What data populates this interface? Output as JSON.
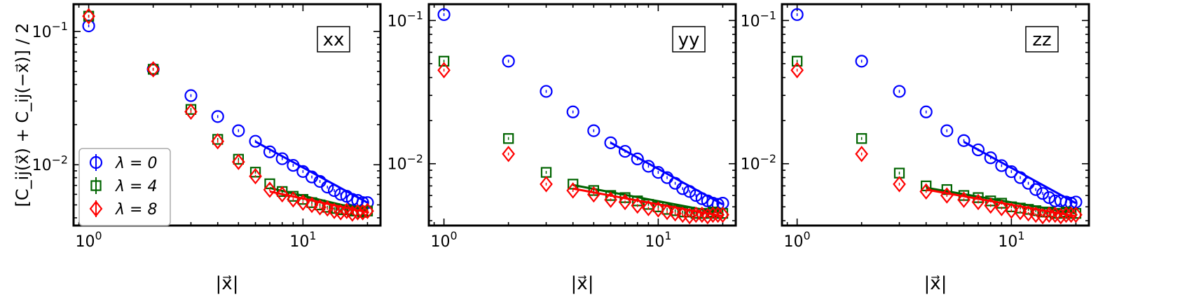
{
  "figure": {
    "ylabel": "[C_ij(x⃗) + C_ij(−x⃗)] / 2",
    "xlabel": "|x⃗|"
  },
  "legend": [
    {
      "label": "λ = 0",
      "color": "#0000ff",
      "marker": "circle-icon"
    },
    {
      "label": "λ = 4",
      "color": "#006400",
      "marker": "square-icon"
    },
    {
      "label": "λ = 8",
      "color": "#ff0000",
      "marker": "diamond-icon"
    }
  ],
  "chart_data": [
    {
      "type": "scatter",
      "panel_label": "xx",
      "xlabel": "|x⃗|",
      "ylabel": "[C_ij(x⃗) + C_ij(−x⃗)] / 2",
      "xscale": "log",
      "yscale": "log",
      "xlim": [
        0.85,
        23
      ],
      "ylim": [
        0.0035,
        0.16
      ],
      "x_ticks": [
        {
          "value": 1,
          "label": "10^0"
        },
        {
          "value": 10,
          "label": "10^1"
        }
      ],
      "y_ticks": [
        {
          "value": 0.01,
          "label": "10^-2"
        },
        {
          "value": 0.1,
          "label": "10^-1"
        }
      ],
      "grid": false,
      "legend_position": "lower-left",
      "series": [
        {
          "name": "λ = 0",
          "color": "#0000ff",
          "marker": "circle",
          "x": [
            1,
            2,
            3,
            4,
            5,
            6,
            7,
            8,
            9,
            10,
            11,
            12,
            13,
            14,
            15,
            16,
            17,
            18,
            19,
            20
          ],
          "y": [
            0.11,
            0.052,
            0.033,
            0.023,
            0.018,
            0.015,
            0.0125,
            0.0111,
            0.0099,
            0.0089,
            0.0081,
            0.0075,
            0.0068,
            0.0064,
            0.006,
            0.0058,
            0.0055,
            0.0054,
            0.0052,
            0.0052
          ],
          "fit_x": [
            6,
            20
          ],
          "fit_y": [
            0.0149,
            0.0052
          ]
        },
        {
          "name": "λ = 4",
          "color": "#006400",
          "marker": "square",
          "x": [
            1,
            2,
            3,
            4,
            5,
            6,
            7,
            8,
            9,
            10,
            11,
            12,
            13,
            14,
            15,
            16,
            17,
            18,
            19,
            20
          ],
          "y": [
            0.13,
            0.052,
            0.026,
            0.0155,
            0.011,
            0.0088,
            0.0072,
            0.0063,
            0.0058,
            0.0055,
            0.0052,
            0.005,
            0.0048,
            0.0047,
            0.0046,
            0.0046,
            0.0045,
            0.0045,
            0.0044,
            0.0045
          ],
          "fit_x": [
            7,
            20
          ],
          "fit_y": [
            0.0067,
            0.0045
          ]
        },
        {
          "name": "λ = 8",
          "color": "#ff0000",
          "marker": "diamond",
          "x": [
            1,
            2,
            3,
            4,
            5,
            6,
            7,
            8,
            9,
            10,
            11,
            12,
            13,
            14,
            15,
            16,
            17,
            18,
            19,
            20
          ],
          "y": [
            0.13,
            0.052,
            0.025,
            0.015,
            0.0105,
            0.0082,
            0.0065,
            0.006,
            0.0055,
            0.0052,
            0.005,
            0.0048,
            0.0047,
            0.0045,
            0.0044,
            0.0045,
            0.0043,
            0.0044,
            0.0044,
            0.0045
          ],
          "fit_x": [
            7,
            20
          ],
          "fit_y": [
            0.0063,
            0.0044
          ]
        }
      ]
    },
    {
      "type": "scatter",
      "panel_label": "yy",
      "xlabel": "|x⃗|",
      "xscale": "log",
      "yscale": "log",
      "xlim": [
        0.85,
        23
      ],
      "ylim": [
        0.0037,
        0.13
      ],
      "x_ticks": [
        {
          "value": 1,
          "label": "10^0"
        },
        {
          "value": 10,
          "label": "10^1"
        }
      ],
      "y_ticks": [
        {
          "value": 0.01,
          "label": "10^-2"
        },
        {
          "value": 0.1,
          "label": "10^-1"
        }
      ],
      "grid": false,
      "series": [
        {
          "name": "λ = 0",
          "color": "#0000ff",
          "marker": "circle",
          "x": [
            1,
            2,
            3,
            4,
            5,
            6,
            7,
            8,
            9,
            10,
            11,
            12,
            13,
            14,
            15,
            16,
            17,
            18,
            19,
            20
          ],
          "y": [
            0.11,
            0.052,
            0.032,
            0.023,
            0.017,
            0.014,
            0.0122,
            0.0108,
            0.0096,
            0.0087,
            0.008,
            0.0073,
            0.0067,
            0.0064,
            0.006,
            0.0057,
            0.0055,
            0.0053,
            0.0052,
            0.0053
          ],
          "fit_x": [
            6,
            20
          ],
          "fit_y": [
            0.014,
            0.0052
          ]
        },
        {
          "name": "λ = 4",
          "color": "#006400",
          "marker": "square",
          "x": [
            1,
            2,
            3,
            4,
            5,
            6,
            7,
            8,
            9,
            10,
            11,
            12,
            13,
            14,
            15,
            16,
            17,
            18,
            19,
            20
          ],
          "y": [
            0.052,
            0.015,
            0.0087,
            0.0072,
            0.0065,
            0.006,
            0.0058,
            0.0055,
            0.0052,
            0.005,
            0.0048,
            0.0047,
            0.0046,
            0.0046,
            0.0045,
            0.0045,
            0.0045,
            0.0046,
            0.0045,
            0.0045
          ],
          "fit_x": [
            4,
            20
          ],
          "fit_y": [
            0.0071,
            0.0045
          ]
        },
        {
          "name": "λ = 8",
          "color": "#ff0000",
          "marker": "diamond",
          "x": [
            1,
            2,
            3,
            4,
            5,
            6,
            7,
            8,
            9,
            10,
            11,
            12,
            13,
            14,
            15,
            16,
            17,
            18,
            19,
            20
          ],
          "y": [
            0.045,
            0.0117,
            0.0072,
            0.0065,
            0.0061,
            0.0056,
            0.0054,
            0.0051,
            0.0049,
            0.0048,
            0.0046,
            0.0045,
            0.0044,
            0.0043,
            0.0044,
            0.0044,
            0.0043,
            0.0044,
            0.0044,
            0.0044
          ],
          "fit_x": [
            4,
            20
          ],
          "fit_y": [
            0.0067,
            0.0043
          ]
        }
      ]
    },
    {
      "type": "scatter",
      "panel_label": "zz",
      "xlabel": "|x⃗|",
      "xscale": "log",
      "yscale": "log",
      "xlim": [
        0.85,
        23
      ],
      "ylim": [
        0.0037,
        0.13
      ],
      "x_ticks": [
        {
          "value": 1,
          "label": "10^0"
        },
        {
          "value": 10,
          "label": "10^1"
        }
      ],
      "y_ticks": [
        {
          "value": 0.01,
          "label": "10^-2"
        },
        {
          "value": 0.1,
          "label": "10^-1"
        }
      ],
      "grid": false,
      "series": [
        {
          "name": "λ = 0",
          "color": "#0000ff",
          "marker": "circle",
          "x": [
            1,
            2,
            3,
            4,
            5,
            6,
            7,
            8,
            9,
            10,
            11,
            12,
            13,
            14,
            15,
            16,
            17,
            18,
            19,
            20
          ],
          "y": [
            0.11,
            0.052,
            0.032,
            0.023,
            0.017,
            0.0145,
            0.0125,
            0.011,
            0.0097,
            0.0088,
            0.008,
            0.0073,
            0.0066,
            0.0062,
            0.0058,
            0.0055,
            0.0055,
            0.0054,
            0.0053,
            0.0054
          ],
          "fit_x": [
            6,
            20
          ],
          "fit_y": [
            0.0142,
            0.0053
          ]
        },
        {
          "name": "λ = 4",
          "color": "#006400",
          "marker": "square",
          "x": [
            1,
            2,
            3,
            4,
            5,
            6,
            7,
            8,
            9,
            10,
            11,
            12,
            13,
            14,
            15,
            16,
            17,
            18,
            19,
            20
          ],
          "y": [
            0.052,
            0.015,
            0.0086,
            0.007,
            0.0066,
            0.006,
            0.0058,
            0.0055,
            0.0053,
            0.005,
            0.0049,
            0.0048,
            0.0047,
            0.0046,
            0.0046,
            0.0045,
            0.0045,
            0.0046,
            0.0045,
            0.0045
          ],
          "fit_x": [
            4,
            20
          ],
          "fit_y": [
            0.0068,
            0.0045
          ]
        },
        {
          "name": "λ = 8",
          "color": "#ff0000",
          "marker": "diamond",
          "x": [
            1,
            2,
            3,
            4,
            5,
            6,
            7,
            8,
            9,
            10,
            11,
            12,
            13,
            14,
            15,
            16,
            17,
            18,
            19,
            20
          ],
          "y": [
            0.045,
            0.0117,
            0.0072,
            0.0064,
            0.006,
            0.0056,
            0.0054,
            0.0051,
            0.0049,
            0.0047,
            0.0046,
            0.0045,
            0.0044,
            0.0043,
            0.0044,
            0.0044,
            0.0043,
            0.0044,
            0.0044,
            0.0044
          ],
          "fit_x": [
            4,
            20
          ],
          "fit_y": [
            0.0066,
            0.0043
          ]
        }
      ]
    }
  ]
}
